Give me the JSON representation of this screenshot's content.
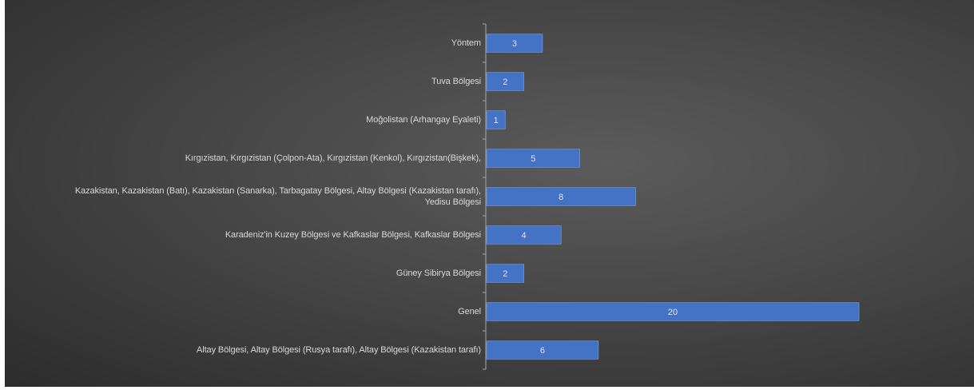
{
  "chart_data": {
    "type": "bar",
    "orientation": "horizontal",
    "categories": [
      "Yöntem",
      "Tuva Bölgesi",
      "Moğolistan (Arhangay Eyaleti)",
      "Kırgızistan, Kırgızistan (Çolpon-Ata), Kırgızistan (Kenkol), Kırgızistan(Bişkek),",
      "Kazakistan, Kazakistan (Batı), Kazakistan (Sanarka), Tarbagatay Bölgesi, Altay Bölgesi (Kazakistan tarafı), Yedisu Bölgesi",
      "Karadeniz'in Kuzey Bölgesi ve Kafkaslar Bölgesi, Kafkaslar Bölgesi",
      "Güney Sibirya Bölgesi",
      "Genel",
      "Altay Bölgesi, Altay Bölgesi (Rusya tarafı), Altay Bölgesi (Kazakistan tarafı)"
    ],
    "values": [
      3,
      2,
      1,
      5,
      8,
      4,
      2,
      20,
      6
    ],
    "data_labels": [
      "3",
      "2",
      "1",
      "5",
      "8",
      "4",
      "2",
      "20",
      "6"
    ],
    "xlim": [
      0,
      20
    ],
    "bar_color": "#4472c4",
    "label_color": "#d9d9d9",
    "grid": false,
    "legend": "none"
  }
}
